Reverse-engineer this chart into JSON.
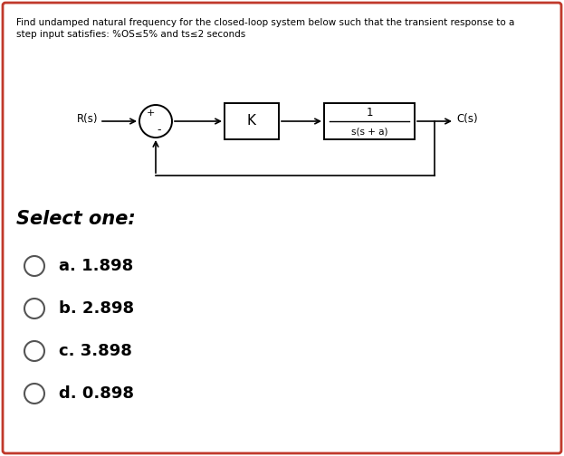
{
  "title_line1": "Find undamped natural frequency for the closed-loop system below such that the transient response to a",
  "title_line2": "step input satisfies: %OS≤5% and ts≤2 seconds",
  "select_one": "Select one:",
  "options": [
    "a. 1.898",
    "b. 2.898",
    "c. 3.898",
    "d. 0.898"
  ],
  "background": "#ffffff",
  "border_color": "#c0392b",
  "text_color": "#000000",
  "R_label": "R(s)",
  "C_label": "C(s)",
  "K_label": "K",
  "tf_num": "1",
  "tf_den": "s(s + a)",
  "plus_sign": "+",
  "minus_sign": "-"
}
